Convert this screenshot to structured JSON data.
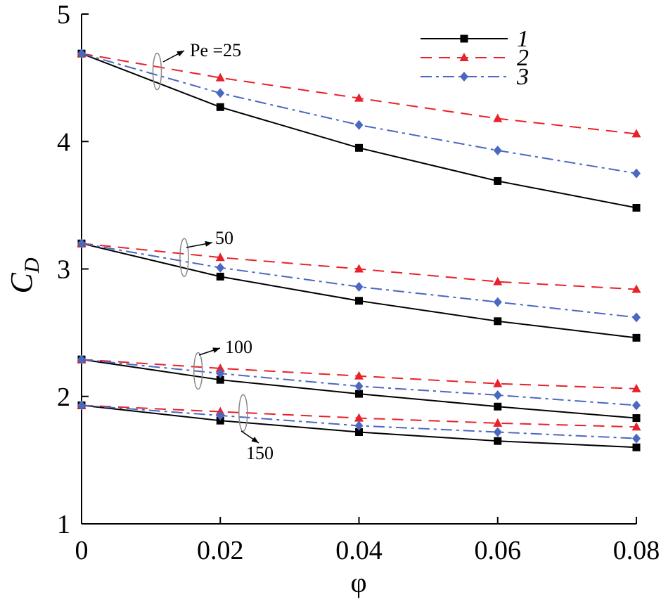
{
  "chart_data": {
    "type": "line",
    "title": "",
    "xlabel": "φ",
    "ylabel": "C",
    "ylabel_subscript": "D",
    "xlim": [
      0,
      0.08
    ],
    "ylim": [
      1,
      5
    ],
    "x": [
      0,
      0.02,
      0.04,
      0.06,
      0.08
    ],
    "x_tick_labels": [
      "0",
      "0.02",
      "0.04",
      "0.06",
      "0.08"
    ],
    "y_tick_labels": [
      "1",
      "2",
      "3",
      "4",
      "5"
    ],
    "y_ticks": [
      1,
      2,
      3,
      4,
      5
    ],
    "grid": false,
    "legend_position": "top-right",
    "legend": [
      "1",
      "2",
      "3"
    ],
    "series_styles": [
      {
        "name": "1",
        "color": "#000000",
        "dash": "solid",
        "marker": "square"
      },
      {
        "name": "2",
        "color": "#e8212a",
        "dash": "dashed",
        "marker": "triangle"
      },
      {
        "name": "3",
        "color": "#4a68c0",
        "dash": "dash-dot",
        "marker": "diamond"
      }
    ],
    "groups": [
      {
        "label": "Pe =25",
        "series": [
          {
            "name": "1",
            "values": [
              4.69,
              4.27,
              3.95,
              3.69,
              3.48
            ]
          },
          {
            "name": "2",
            "values": [
              4.69,
              4.5,
              4.34,
              4.18,
              4.06
            ]
          },
          {
            "name": "3",
            "values": [
              4.69,
              4.38,
              4.13,
              3.93,
              3.75
            ]
          }
        ]
      },
      {
        "label": "50",
        "series": [
          {
            "name": "1",
            "values": [
              3.2,
              2.94,
              2.75,
              2.59,
              2.46
            ]
          },
          {
            "name": "2",
            "values": [
              3.2,
              3.09,
              3.0,
              2.9,
              2.84
            ]
          },
          {
            "name": "3",
            "values": [
              3.2,
              3.01,
              2.86,
              2.74,
              2.62
            ]
          }
        ]
      },
      {
        "label": "100",
        "series": [
          {
            "name": "1",
            "values": [
              2.29,
              2.13,
              2.02,
              1.92,
              1.83
            ]
          },
          {
            "name": "2",
            "values": [
              2.29,
              2.22,
              2.16,
              2.1,
              2.06
            ]
          },
          {
            "name": "3",
            "values": [
              2.29,
              2.18,
              2.08,
              2.01,
              1.93
            ]
          }
        ]
      },
      {
        "label": "150",
        "series": [
          {
            "name": "1",
            "values": [
              1.93,
              1.81,
              1.72,
              1.65,
              1.6
            ]
          },
          {
            "name": "2",
            "values": [
              1.93,
              1.88,
              1.83,
              1.79,
              1.76
            ]
          },
          {
            "name": "3",
            "values": [
              1.93,
              1.85,
              1.77,
              1.72,
              1.67
            ]
          }
        ]
      }
    ]
  }
}
